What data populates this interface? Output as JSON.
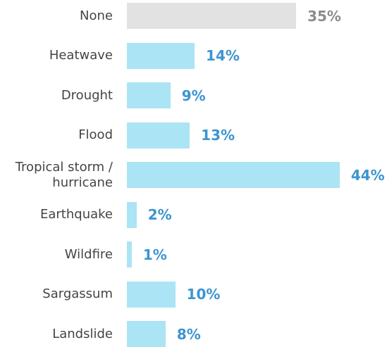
{
  "colors": {
    "bar_default": "#abe4f4",
    "bar_highlight": "#e2e2e2",
    "label_default": "#3d94d0",
    "label_highlight": "#8c8c8c"
  },
  "chart_data": {
    "type": "bar",
    "orientation": "horizontal",
    "title": "",
    "xlabel": "",
    "ylabel": "",
    "grid": false,
    "legend": "none",
    "xlim": [
      0,
      50
    ],
    "categories": [
      "None",
      "Heatwave",
      "Drought",
      "Flood",
      "Tropical storm / hurricane",
      "Earthquake",
      "Wildfire",
      "Sargassum",
      "Landslide"
    ],
    "display_categories": [
      "None",
      "Heatwave",
      "Drought",
      "Flood",
      "Tropical storm /\nhurricane",
      "Earthquake",
      "Wildfire",
      "Sargassum",
      "Landslide"
    ],
    "values": [
      35,
      14,
      9,
      13,
      44,
      2,
      1,
      10,
      8
    ],
    "value_labels": [
      "35%",
      "14%",
      "9%",
      "13%",
      "44%",
      "2%",
      "1%",
      "10%",
      "8%"
    ],
    "highlighted_index": 0
  }
}
